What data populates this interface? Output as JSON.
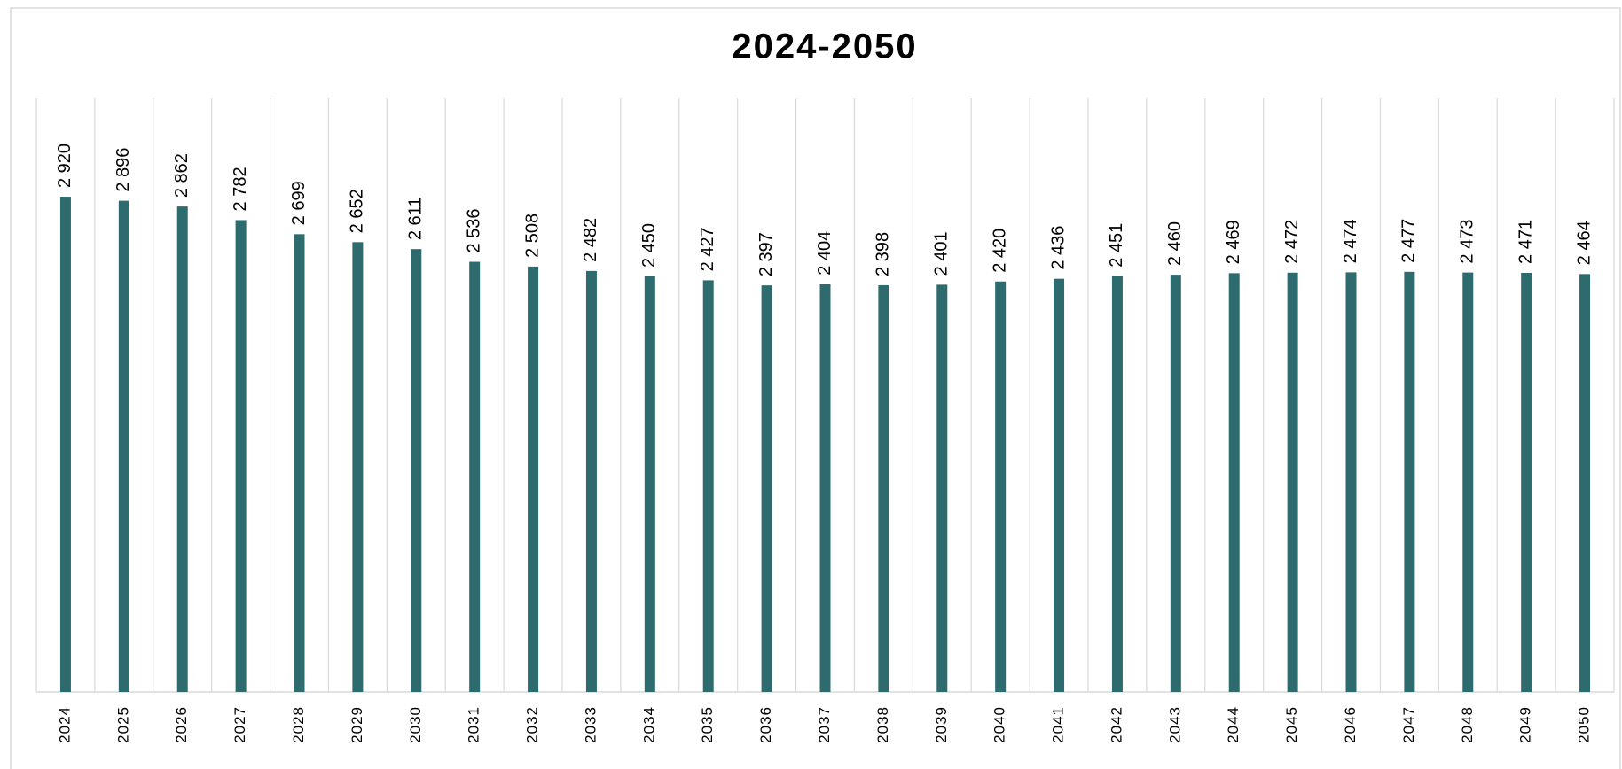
{
  "chart_data": {
    "type": "bar",
    "title": "2024-2050",
    "categories": [
      "2024",
      "2025",
      "2026",
      "2027",
      "2028",
      "2029",
      "2030",
      "2031",
      "2032",
      "2033",
      "2034",
      "2035",
      "2036",
      "2037",
      "2038",
      "2039",
      "2040",
      "2041",
      "2042",
      "2043",
      "2044",
      "2045",
      "2046",
      "2047",
      "2048",
      "2049",
      "2050"
    ],
    "values": [
      2920,
      2896,
      2862,
      2782,
      2699,
      2652,
      2611,
      2536,
      2508,
      2482,
      2450,
      2427,
      2397,
      2404,
      2398,
      2401,
      2420,
      2436,
      2451,
      2460,
      2469,
      2472,
      2474,
      2477,
      2473,
      2471,
      2464
    ],
    "value_labels": [
      "2 920",
      "2 896",
      "2 862",
      "2 782",
      "2 699",
      "2 652",
      "2 611",
      "2 536",
      "2 508",
      "2 482",
      "2 450",
      "2 427",
      "2 397",
      "2 404",
      "2 398",
      "2 401",
      "2 420",
      "2 436",
      "2 451",
      "2 460",
      "2 469",
      "2 472",
      "2 474",
      "2 477",
      "2 473",
      "2 471",
      "2 464"
    ],
    "color": "#2e6b6e",
    "ylim": [
      0,
      3500
    ]
  }
}
